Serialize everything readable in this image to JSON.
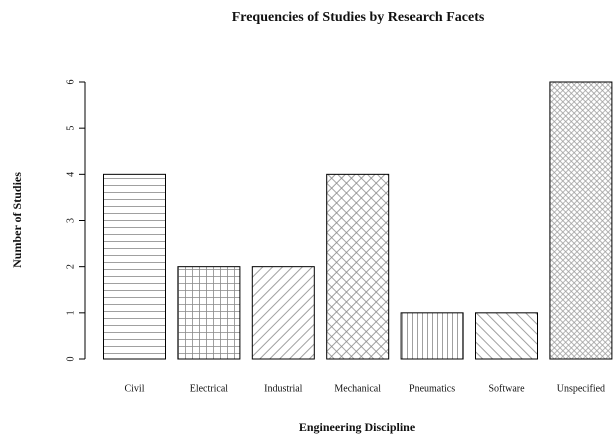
{
  "chart_data": {
    "type": "bar",
    "title": "Frequencies of Studies by Research Facets",
    "x_label": "Engineering Discipline",
    "y_label": "Number of Studies",
    "categories": [
      "Civil",
      "Electrical",
      "Industrial",
      "Mechanical",
      "Pneumatics",
      "Software",
      "Unspecified"
    ],
    "values": [
      4,
      2,
      2,
      4,
      1,
      1,
      6
    ],
    "ylim": [
      0,
      6
    ],
    "yticks": [
      0,
      1,
      2,
      3,
      4,
      5,
      6
    ],
    "grid": false
  }
}
